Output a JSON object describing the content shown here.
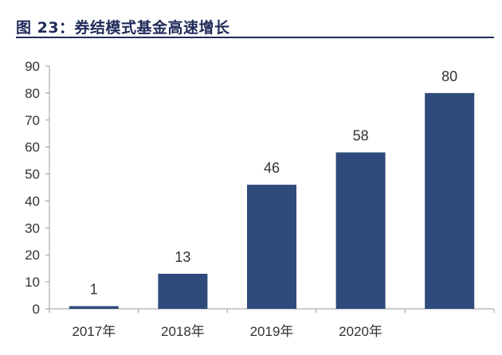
{
  "figure": {
    "title": "图 23：券结模式基金高速增长"
  },
  "chart_data": {
    "type": "bar",
    "title": "图 23：券结模式基金高速增长",
    "categories": [
      "2017年",
      "2018年",
      "2019年",
      "2020年",
      ""
    ],
    "values": [
      1,
      13,
      46,
      58,
      80
    ],
    "data_labels": [
      "1",
      "13",
      "46",
      "58",
      "80"
    ],
    "xlabel": "",
    "ylabel": "",
    "ylim": [
      0,
      90
    ],
    "yticks": [
      0,
      10,
      20,
      30,
      40,
      50,
      60,
      70,
      80,
      90
    ],
    "ytick_labels": [
      "0",
      "10",
      "20",
      "30",
      "40",
      "50",
      "60",
      "70",
      "80",
      "90"
    ],
    "grid": false,
    "legend": "none",
    "bar_color": "#2f4b7c",
    "axis_color": "#999999"
  }
}
